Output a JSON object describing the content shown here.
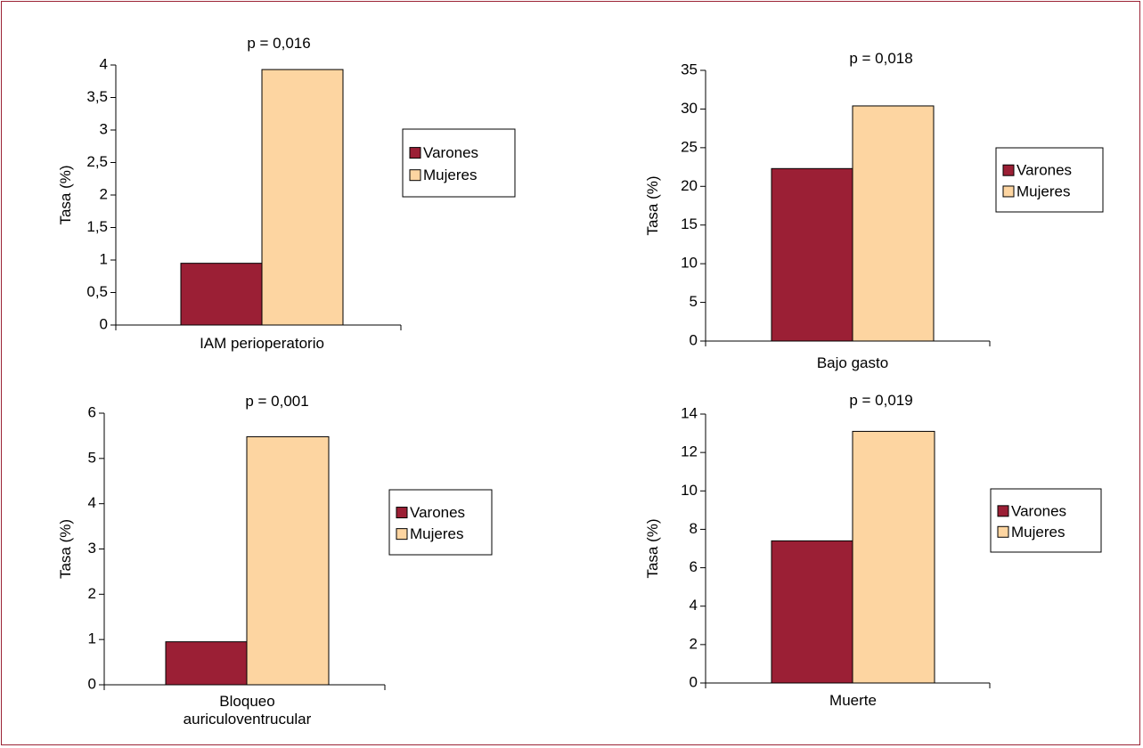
{
  "colors": {
    "varones": "#9b1f35",
    "mujeres": "#fdd5a1",
    "frame": "#9b2335",
    "axis": "#000000"
  },
  "legend": [
    "Varones",
    "Mujeres"
  ],
  "chart_data": [
    {
      "type": "bar",
      "title": "p = 0,016",
      "ylabel": "Tasa (%)",
      "categories": [
        "IAM perioperatorio"
      ],
      "series": [
        {
          "name": "Varones",
          "values": [
            0.95
          ]
        },
        {
          "name": "Mujeres",
          "values": [
            3.93
          ]
        }
      ],
      "ylim": [
        0,
        4
      ],
      "yticks": [
        "0",
        "0,5",
        "1",
        "1,5",
        "2",
        "2,5",
        "3",
        "3,5",
        "4"
      ],
      "legend_position": "right"
    },
    {
      "type": "bar",
      "title": "p = 0,018",
      "ylabel": "Tasa (%)",
      "categories": [
        "Bajo gasto"
      ],
      "series": [
        {
          "name": "Varones",
          "values": [
            22.3
          ]
        },
        {
          "name": "Mujeres",
          "values": [
            30.4
          ]
        }
      ],
      "ylim": [
        0,
        35
      ],
      "yticks": [
        "0",
        "5",
        "10",
        "15",
        "20",
        "25",
        "30",
        "35"
      ],
      "legend_position": "right"
    },
    {
      "type": "bar",
      "title": "p = 0,001",
      "ylabel": "Tasa (%)",
      "categories": [
        "Bloqueo auriculoventrucular"
      ],
      "category_lines": [
        [
          "Bloqueo",
          "auriculoventrucular"
        ]
      ],
      "series": [
        {
          "name": "Varones",
          "values": [
            0.95
          ]
        },
        {
          "name": "Mujeres",
          "values": [
            5.48
          ]
        }
      ],
      "ylim": [
        0,
        6
      ],
      "yticks": [
        "0",
        "1",
        "2",
        "3",
        "4",
        "5",
        "6"
      ],
      "legend_position": "right"
    },
    {
      "type": "bar",
      "title": "p = 0,019",
      "ylabel": "Tasa (%)",
      "categories": [
        "Muerte"
      ],
      "series": [
        {
          "name": "Varones",
          "values": [
            7.4
          ]
        },
        {
          "name": "Mujeres",
          "values": [
            13.1
          ]
        }
      ],
      "ylim": [
        0,
        14
      ],
      "yticks": [
        "0",
        "2",
        "4",
        "6",
        "8",
        "10",
        "12",
        "14"
      ],
      "legend_position": "right"
    }
  ]
}
